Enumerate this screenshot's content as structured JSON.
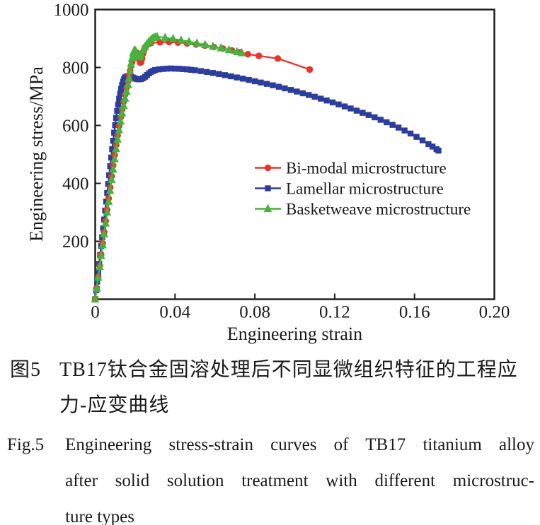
{
  "caption_zh": {
    "label": "图5",
    "lines": [
      "TB17钛合金固溶处理后不同显微组织特征的工程应",
      "力-应变曲线"
    ]
  },
  "caption_en": {
    "label": "Fig.5",
    "lines": [
      "Engineering stress-strain curves of TB17 titanium alloy",
      "after solid solution treatment with different microstruc-",
      "ture types"
    ]
  },
  "colors": {
    "frame": "#1a1a1a",
    "text": "#1a1a1a",
    "background": "#ffffff",
    "bimodal_red": "#e8352b",
    "lamellar_blue": "#2d3d9c",
    "basketweave_green": "#47b33c"
  },
  "chart_data": {
    "type": "line",
    "title": "",
    "xlabel": "Engineering strain",
    "ylabel": "Engineering stress/MPa",
    "xlim": [
      0,
      0.2
    ],
    "ylim": [
      0,
      1000
    ],
    "grid": false,
    "legend_position": "inside right-center",
    "xticks": {
      "values": [
        0,
        0.04,
        0.08,
        0.12,
        0.16,
        0.2
      ],
      "labels": [
        "0",
        "0.04",
        "0.08",
        "0.12",
        "0.16",
        "0.20"
      ]
    },
    "yticks": {
      "values": [
        200,
        400,
        600,
        800,
        1000
      ],
      "labels": [
        "200",
        "400",
        "600",
        "800",
        "1000"
      ]
    },
    "series": [
      {
        "name": "Bi-modal microstructure",
        "color": "#e8352b",
        "marker": "circle",
        "points": [
          [
            0,
            0
          ],
          [
            0.00075,
            39
          ],
          [
            0.0015,
            77
          ],
          [
            0.00225,
            116
          ],
          [
            0.003,
            155
          ],
          [
            0.00375,
            193
          ],
          [
            0.0045,
            232
          ],
          [
            0.00525,
            270
          ],
          [
            0.006,
            309
          ],
          [
            0.00675,
            348
          ],
          [
            0.0075,
            386
          ],
          [
            0.00825,
            425
          ],
          [
            0.009,
            462
          ],
          [
            0.00975,
            498
          ],
          [
            0.0105,
            533
          ],
          [
            0.01125,
            566
          ],
          [
            0.012,
            598
          ],
          [
            0.01275,
            628
          ],
          [
            0.0135,
            656
          ],
          [
            0.01425,
            682
          ],
          [
            0.015,
            707
          ],
          [
            0.01575,
            730
          ],
          [
            0.0165,
            752
          ],
          [
            0.017,
            771
          ],
          [
            0.0175,
            789
          ],
          [
            0.018,
            806
          ],
          [
            0.0185,
            819
          ],
          [
            0.019,
            831
          ],
          [
            0.0195,
            841
          ],
          [
            0.02,
            848
          ],
          [
            0.0205,
            852
          ],
          [
            0.021,
            850
          ],
          [
            0.0215,
            841
          ],
          [
            0.022,
            828
          ],
          [
            0.0225,
            817
          ],
          [
            0.023,
            818
          ],
          [
            0.0235,
            831
          ],
          [
            0.024,
            847
          ],
          [
            0.0245,
            861
          ],
          [
            0.025,
            870
          ],
          [
            0.026,
            878
          ],
          [
            0.027,
            882
          ],
          [
            0.028,
            884.5
          ],
          [
            0.0325,
            887
          ],
          [
            0.037,
            888
          ],
          [
            0.0415,
            886
          ],
          [
            0.046,
            883
          ],
          [
            0.0505,
            879.5
          ],
          [
            0.055,
            875.5
          ],
          [
            0.0595,
            870.5
          ],
          [
            0.064,
            865
          ],
          [
            0.0685,
            859
          ],
          [
            0.0725,
            852.5
          ],
          [
            0.0765,
            846
          ],
          [
            0.082,
            840
          ],
          [
            0.0915,
            831
          ],
          [
            0.1075,
            793
          ]
        ]
      },
      {
        "name": "Lamellar microstructure",
        "color": "#2d3d9c",
        "marker": "square",
        "points": [
          [
            0,
            0
          ],
          [
            0.0005,
            31
          ],
          [
            0.001,
            61
          ],
          [
            0.0015,
            92
          ],
          [
            0.002,
            122
          ],
          [
            0.0025,
            153
          ],
          [
            0.003,
            184
          ],
          [
            0.0035,
            214
          ],
          [
            0.004,
            245
          ],
          [
            0.0045,
            275
          ],
          [
            0.005,
            306
          ],
          [
            0.0055,
            337
          ],
          [
            0.006,
            367
          ],
          [
            0.0065,
            398
          ],
          [
            0.007,
            428
          ],
          [
            0.0075,
            459
          ],
          [
            0.008,
            489
          ],
          [
            0.0085,
            518
          ],
          [
            0.009,
            547
          ],
          [
            0.0095,
            575
          ],
          [
            0.01,
            601
          ],
          [
            0.0105,
            626
          ],
          [
            0.011,
            650
          ],
          [
            0.0115,
            672
          ],
          [
            0.012,
            692
          ],
          [
            0.0125,
            710
          ],
          [
            0.013,
            726
          ],
          [
            0.0135,
            740
          ],
          [
            0.014,
            751
          ],
          [
            0.0145,
            760
          ],
          [
            0.015,
            766
          ],
          [
            0.016,
            770
          ],
          [
            0.017,
            770
          ],
          [
            0.018,
            768
          ],
          [
            0.019,
            765
          ],
          [
            0.02,
            762
          ],
          [
            0.021,
            760
          ],
          [
            0.022,
            759
          ],
          [
            0.023,
            760
          ],
          [
            0.024,
            763
          ],
          [
            0.025,
            768
          ],
          [
            0.026,
            774
          ],
          [
            0.027,
            780
          ],
          [
            0.028,
            785
          ],
          [
            0.029,
            788
          ],
          [
            0.03,
            791
          ],
          [
            0.032,
            793.5
          ],
          [
            0.034,
            795
          ],
          [
            0.036,
            796
          ],
          [
            0.038,
            796.5
          ],
          [
            0.04,
            796
          ],
          [
            0.042,
            795.5
          ],
          [
            0.044,
            794.5
          ],
          [
            0.046,
            793.5
          ],
          [
            0.048,
            792
          ],
          [
            0.05,
            790.5
          ],
          [
            0.053,
            787.5
          ],
          [
            0.056,
            784.5
          ],
          [
            0.059,
            781
          ],
          [
            0.062,
            777.5
          ],
          [
            0.065,
            773.5
          ],
          [
            0.068,
            769.5
          ],
          [
            0.071,
            765.5
          ],
          [
            0.074,
            761.5
          ],
          [
            0.077,
            757
          ],
          [
            0.08,
            752.5
          ],
          [
            0.083,
            748
          ],
          [
            0.086,
            743.5
          ],
          [
            0.089,
            738.5
          ],
          [
            0.092,
            733.5
          ],
          [
            0.095,
            728
          ],
          [
            0.098,
            722.5
          ],
          [
            0.101,
            717
          ],
          [
            0.104,
            711
          ],
          [
            0.107,
            705
          ],
          [
            0.11,
            699
          ],
          [
            0.113,
            692.5
          ],
          [
            0.116,
            686
          ],
          [
            0.119,
            679.5
          ],
          [
            0.122,
            672.5
          ],
          [
            0.125,
            665.5
          ],
          [
            0.128,
            658.5
          ],
          [
            0.131,
            651
          ],
          [
            0.134,
            643.5
          ],
          [
            0.137,
            636
          ],
          [
            0.14,
            628
          ],
          [
            0.143,
            619.5
          ],
          [
            0.146,
            611
          ],
          [
            0.149,
            602
          ],
          [
            0.152,
            592.5
          ],
          [
            0.155,
            582.5
          ],
          [
            0.158,
            572
          ],
          [
            0.161,
            560.5
          ],
          [
            0.164,
            548.5
          ],
          [
            0.167,
            535.5
          ],
          [
            0.169,
            527
          ],
          [
            0.171,
            518
          ],
          [
            0.172,
            513
          ]
        ]
      },
      {
        "name": "Basketweave microstructure",
        "color": "#47b33c",
        "marker": "triangle",
        "points": [
          [
            0,
            0
          ],
          [
            0.00075,
            37
          ],
          [
            0.0015,
            75
          ],
          [
            0.00225,
            112
          ],
          [
            0.003,
            150
          ],
          [
            0.00375,
            187
          ],
          [
            0.0045,
            225
          ],
          [
            0.00525,
            262
          ],
          [
            0.006,
            300
          ],
          [
            0.00675,
            337
          ],
          [
            0.0075,
            375
          ],
          [
            0.00825,
            412
          ],
          [
            0.009,
            448
          ],
          [
            0.00975,
            484
          ],
          [
            0.0105,
            519
          ],
          [
            0.01125,
            552
          ],
          [
            0.012,
            584
          ],
          [
            0.01275,
            614
          ],
          [
            0.0135,
            642
          ],
          [
            0.01425,
            668
          ],
          [
            0.015,
            693
          ],
          [
            0.01575,
            717
          ],
          [
            0.0165,
            740
          ],
          [
            0.017,
            762
          ],
          [
            0.0175,
            788
          ],
          [
            0.018,
            812
          ],
          [
            0.0185,
            833
          ],
          [
            0.019,
            849
          ],
          [
            0.0195,
            858
          ],
          [
            0.02,
            859
          ],
          [
            0.0205,
            854
          ],
          [
            0.021,
            845
          ],
          [
            0.0215,
            838
          ],
          [
            0.022,
            836
          ],
          [
            0.0225,
            840
          ],
          [
            0.023,
            848
          ],
          [
            0.024,
            861
          ],
          [
            0.025,
            872
          ],
          [
            0.026,
            882
          ],
          [
            0.027,
            890
          ],
          [
            0.028,
            897
          ],
          [
            0.029,
            902
          ],
          [
            0.03,
            905
          ],
          [
            0.031,
            906
          ],
          [
            0.035,
            903
          ],
          [
            0.039,
            899
          ],
          [
            0.043,
            894
          ],
          [
            0.047,
            889
          ],
          [
            0.051,
            883.5
          ],
          [
            0.055,
            878
          ],
          [
            0.059,
            872.5
          ],
          [
            0.063,
            867
          ],
          [
            0.067,
            860.5
          ],
          [
            0.071,
            854
          ],
          [
            0.0735,
            850
          ]
        ]
      }
    ]
  }
}
